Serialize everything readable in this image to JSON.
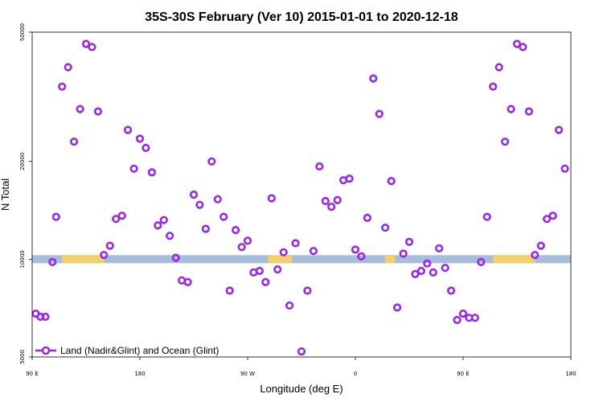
{
  "chart_data": {
    "type": "scatter",
    "title": "35S-30S February (Ver 10)   2015-01-01 to 2020-12-18",
    "xlabel": "Longitude (deg E)",
    "ylabel": "N Total",
    "y_scale": "log",
    "xlim": [
      90,
      540
    ],
    "ylim": [
      5000,
      50000
    ],
    "x_tick_values": [
      90,
      180,
      270,
      360,
      450,
      540
    ],
    "x_tick_labels": [
      "90 E",
      "180",
      "90 W",
      "0",
      "90 E",
      "180"
    ],
    "y_tick_values": [
      5000,
      10000,
      20000,
      50000
    ],
    "y_tick_labels": [
      "5000",
      "10000",
      "20000",
      "50000"
    ],
    "grid": false,
    "legend_position": "bottom-left",
    "background_band": {
      "y_value": 10000,
      "ocean_color": "#a6bddb",
      "land_color": "#f5cf6a",
      "land_ranges_x": [
        [
          115,
          150
        ],
        [
          287,
          307
        ],
        [
          385,
          393
        ],
        [
          475,
          510
        ]
      ]
    },
    "series": [
      {
        "name": "Land (Nadir&Glint) and Ocean (Glint)",
        "color": "#9b27e6",
        "marker": "open-circle",
        "points": [
          [
            93,
            6800
          ],
          [
            97,
            6650
          ],
          [
            101,
            6650
          ],
          [
            107,
            9800
          ],
          [
            110,
            13500
          ],
          [
            115,
            34000
          ],
          [
            120,
            39000
          ],
          [
            125,
            23000
          ],
          [
            130,
            29000
          ],
          [
            135,
            46000
          ],
          [
            140,
            45000
          ],
          [
            145,
            28500
          ],
          [
            150,
            10300
          ],
          [
            155,
            11000
          ],
          [
            160,
            13300
          ],
          [
            165,
            13600
          ],
          [
            170,
            25000
          ],
          [
            175,
            19000
          ],
          [
            180,
            23500
          ],
          [
            185,
            22000
          ],
          [
            190,
            18500
          ],
          [
            195,
            12700
          ],
          [
            200,
            13200
          ],
          [
            205,
            11800
          ],
          [
            210,
            10100
          ],
          [
            215,
            8600
          ],
          [
            220,
            8500
          ],
          [
            225,
            15800
          ],
          [
            230,
            14700
          ],
          [
            235,
            12400
          ],
          [
            240,
            20000
          ],
          [
            245,
            15300
          ],
          [
            250,
            13500
          ],
          [
            255,
            8000
          ],
          [
            260,
            12300
          ],
          [
            265,
            10900
          ],
          [
            270,
            11400
          ],
          [
            275,
            9100
          ],
          [
            280,
            9200
          ],
          [
            285,
            8500
          ],
          [
            290,
            15400
          ],
          [
            295,
            9300
          ],
          [
            300,
            10500
          ],
          [
            305,
            7200
          ],
          [
            310,
            11200
          ],
          [
            315,
            5200
          ],
          [
            320,
            8000
          ],
          [
            325,
            10600
          ],
          [
            330,
            19300
          ],
          [
            335,
            15100
          ],
          [
            340,
            14500
          ],
          [
            345,
            15200
          ],
          [
            350,
            17500
          ],
          [
            355,
            17700
          ],
          [
            360,
            10700
          ],
          [
            365,
            10200
          ],
          [
            370,
            13400
          ],
          [
            375,
            36000
          ],
          [
            380,
            28000
          ],
          [
            385,
            12500
          ],
          [
            390,
            17400
          ],
          [
            395,
            7100
          ],
          [
            400,
            10400
          ],
          [
            405,
            11300
          ],
          [
            410,
            9000
          ],
          [
            415,
            9200
          ],
          [
            420,
            9700
          ],
          [
            425,
            9100
          ],
          [
            430,
            10800
          ],
          [
            435,
            9400
          ],
          [
            440,
            8000
          ],
          [
            445,
            6500
          ],
          [
            450,
            6800
          ],
          [
            455,
            6600
          ],
          [
            460,
            6600
          ],
          [
            465,
            9800
          ],
          [
            470,
            13500
          ],
          [
            475,
            34000
          ],
          [
            480,
            39000
          ],
          [
            485,
            23000
          ],
          [
            490,
            29000
          ],
          [
            495,
            46000
          ],
          [
            500,
            45000
          ],
          [
            505,
            28500
          ],
          [
            510,
            10300
          ],
          [
            515,
            11000
          ],
          [
            520,
            13300
          ],
          [
            525,
            13600
          ],
          [
            530,
            25000
          ],
          [
            535,
            19000
          ]
        ]
      }
    ]
  }
}
